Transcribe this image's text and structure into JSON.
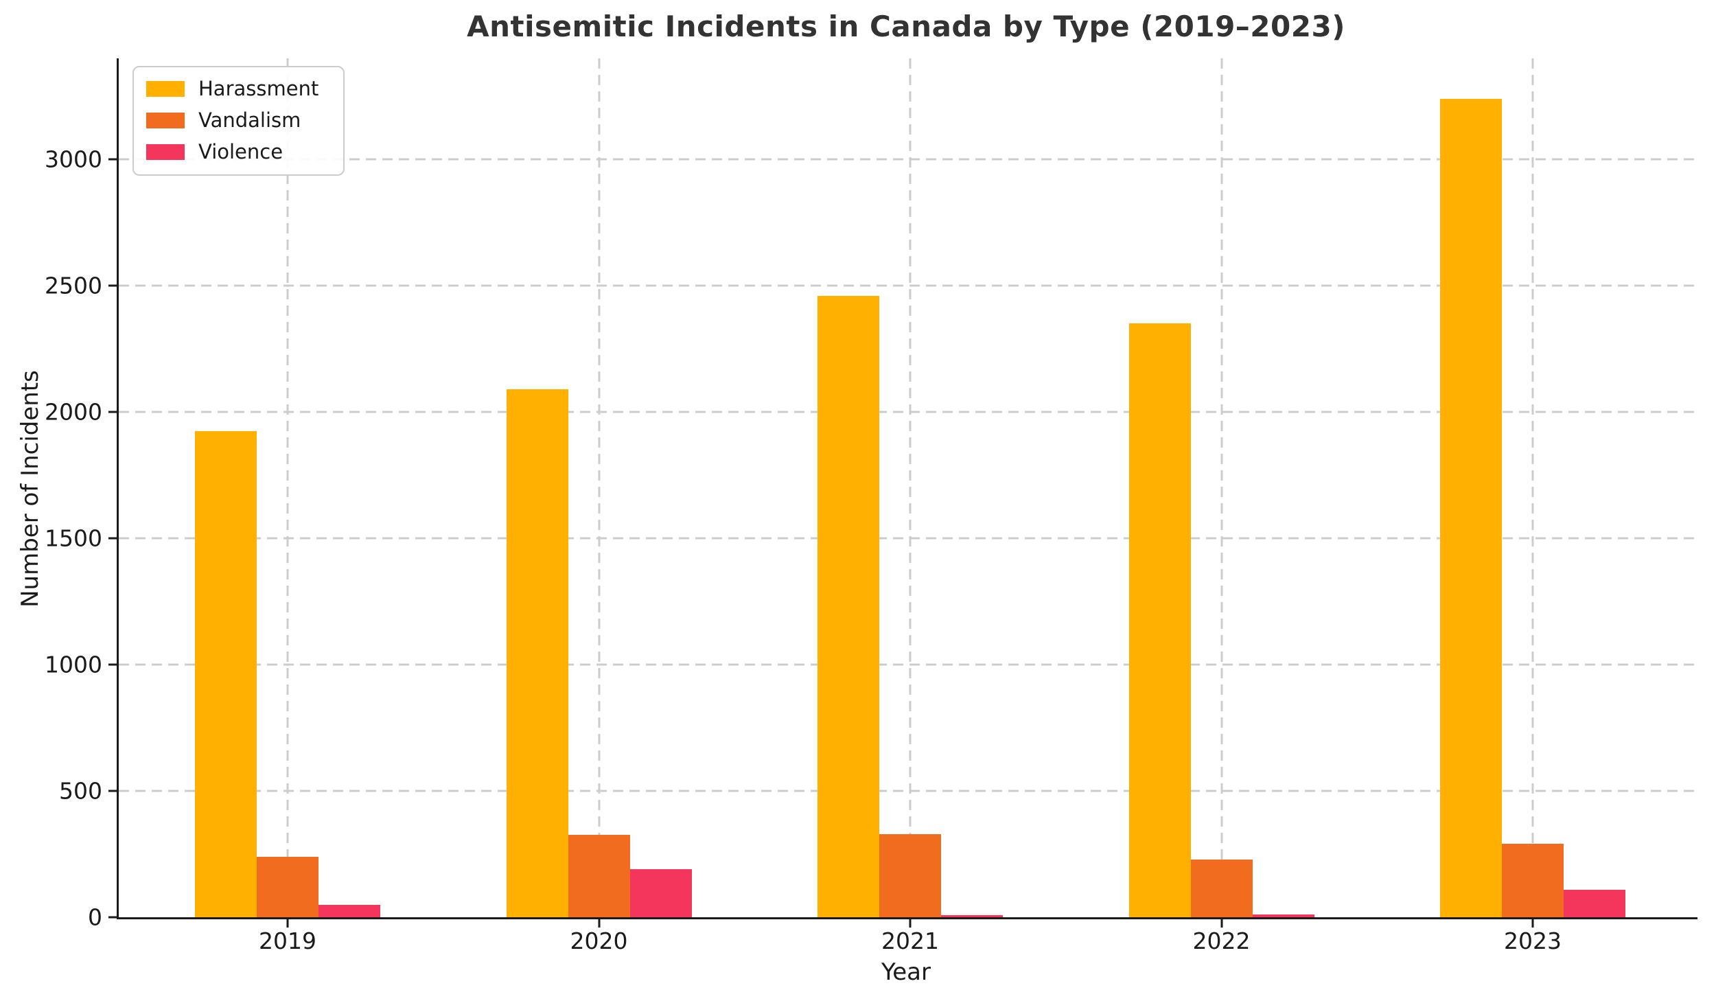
{
  "page": {
    "background_color": "#FFFFFF",
    "text_color": "#1A1A1A",
    "title_color": "#333333",
    "grid_color": "#CCCCCC",
    "axis_spine_color": "#1A1A1A"
  },
  "chart_data": {
    "type": "bar",
    "title": "Antisemitic Incidents in Canada by Type (2019–2023)",
    "xlabel": "Year",
    "ylabel": "Number of Incidents",
    "categories": [
      "2019",
      "2020",
      "2021",
      "2022",
      "2023"
    ],
    "series": [
      {
        "name": "Harassment",
        "color": "#FFB000",
        "values": [
          1925,
          2090,
          2460,
          2350,
          3240
        ]
      },
      {
        "name": "Vandalism",
        "color": "#F26C1F",
        "values": [
          238,
          325,
          330,
          228,
          290
        ]
      },
      {
        "name": "Violence",
        "color": "#F5365C",
        "values": [
          50,
          190,
          8,
          12,
          110
        ]
      }
    ],
    "ylim": [
      0,
      3400
    ],
    "yticks": [
      0,
      500,
      1000,
      1500,
      2000,
      2500,
      3000
    ],
    "grid": true,
    "grid_style": "dashed",
    "legend_position": "upper left"
  }
}
